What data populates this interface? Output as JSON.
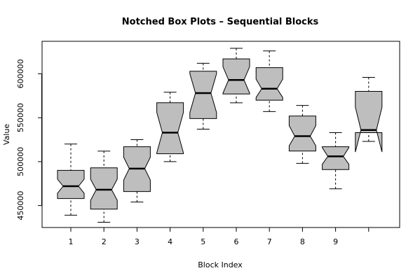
{
  "chart_data": {
    "type": "boxplot",
    "notched": true,
    "title": "Notched Box Plots – Sequential Blocks",
    "xlabel": "Block Index",
    "ylabel": "Value",
    "ylim": [
      425000,
      637000
    ],
    "yticks": [
      450000,
      500000,
      550000,
      600000
    ],
    "ytick_labels": [
      "450000",
      "500000",
      "550000",
      "600000"
    ],
    "xtick_labels": [
      "1",
      "2",
      "3",
      "4",
      "5",
      "6",
      "7",
      "8",
      "9",
      ""
    ],
    "box_color": "#bebebe",
    "boxes": [
      {
        "label": "1",
        "min": 439000,
        "q1": 458000,
        "median": 472000,
        "q3": 490000,
        "max": 520000,
        "notch": [
          464000,
          480000
        ]
      },
      {
        "label": "2",
        "min": 431000,
        "q1": 446000,
        "median": 468000,
        "q3": 493000,
        "max": 512000,
        "notch": [
          456000,
          480000
        ]
      },
      {
        "label": "3",
        "min": 454000,
        "q1": 466000,
        "median": 492000,
        "q3": 517000,
        "max": 525000,
        "notch": [
          479000,
          505000
        ]
      },
      {
        "label": "4",
        "min": 500000,
        "q1": 509000,
        "median": 533000,
        "q3": 567000,
        "max": 579000,
        "notch": [
          510000,
          556000
        ]
      },
      {
        "label": "5",
        "min": 537000,
        "q1": 549000,
        "median": 578000,
        "q3": 603000,
        "max": 612000,
        "notch": [
          556000,
          600000
        ]
      },
      {
        "label": "6",
        "min": 567000,
        "q1": 577000,
        "median": 593000,
        "q3": 617000,
        "max": 629000,
        "notch": [
          578000,
          608000
        ]
      },
      {
        "label": "7",
        "min": 557000,
        "q1": 570000,
        "median": 583000,
        "q3": 607000,
        "max": 626000,
        "notch": [
          573000,
          594000
        ]
      },
      {
        "label": "8",
        "min": 498000,
        "q1": 512000,
        "median": 529000,
        "q3": 552000,
        "max": 564000,
        "notch": [
          518000,
          541000
        ]
      },
      {
        "label": "9",
        "min": 469000,
        "q1": 491000,
        "median": 506000,
        "q3": 517000,
        "max": 533000,
        "notch": [
          497000,
          516000
        ]
      },
      {
        "label": "",
        "min": 523000,
        "q1": 533000,
        "median": 536000,
        "q3": 580000,
        "max": 596000,
        "notch": [
          511000,
          562000
        ]
      }
    ]
  }
}
